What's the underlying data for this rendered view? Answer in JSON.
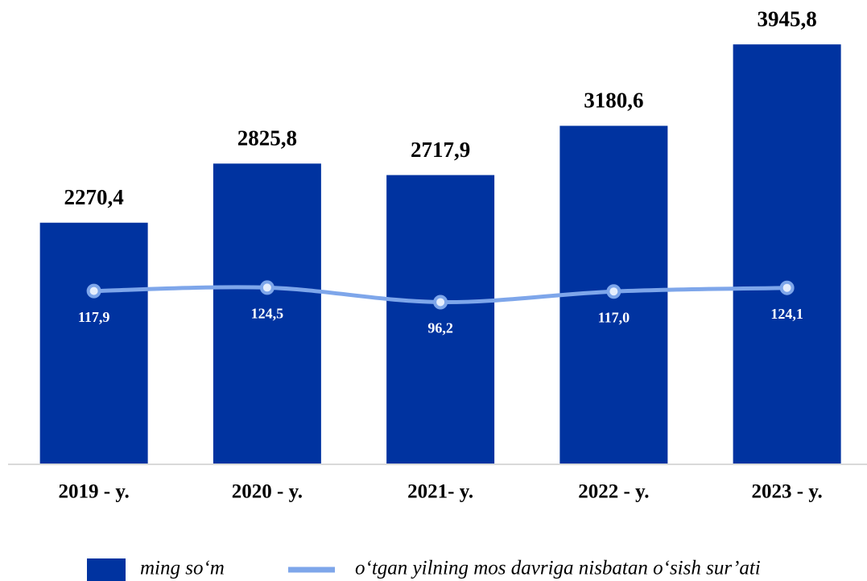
{
  "chart_data": {
    "type": "bar",
    "categories": [
      "2019 - y.",
      "2020 - y.",
      "2021- y.",
      "2022 - y.",
      "2023 - y."
    ],
    "series": [
      {
        "name": "ming so‘m",
        "type": "bar",
        "color": "#0033a0",
        "values": [
          2270.4,
          2825.8,
          2717.9,
          3180.6,
          3945.8
        ],
        "value_labels": [
          "2270,4",
          "2825,8",
          "2717,9",
          "3180,6",
          "3945,8"
        ]
      },
      {
        "name": "o‘tgan yilning mos davriga nisbatan o‘sish sur’ati",
        "type": "line",
        "axis": "y2",
        "color": "#7ea6ea",
        "values": [
          117.9,
          124.5,
          96.2,
          117.0,
          124.1
        ],
        "value_labels": [
          "117,9",
          "124,5",
          "96,2",
          "117,0",
          "124,1"
        ]
      }
    ],
    "ylim": [
      0,
      4000
    ],
    "y2lim": [
      -220,
      610
    ]
  }
}
